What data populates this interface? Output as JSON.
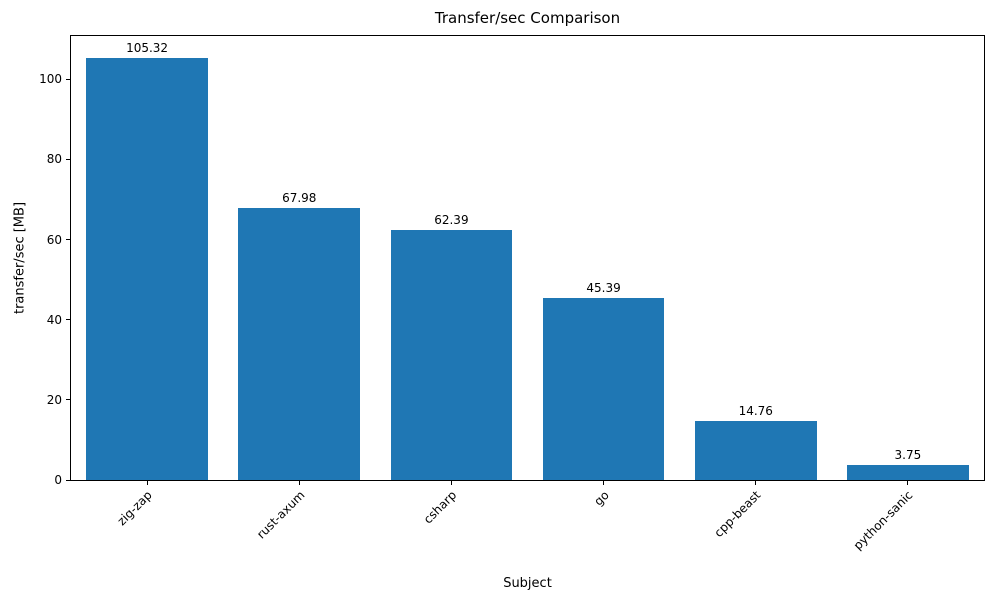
{
  "chart_data": {
    "type": "bar",
    "title": "Transfer/sec Comparison",
    "xlabel": "Subject",
    "ylabel": "transfer/sec [MB]",
    "categories": [
      "zig-zap",
      "rust-axum",
      "csharp",
      "go",
      "cpp-beast",
      "python-sanic"
    ],
    "values": [
      105.32,
      67.98,
      62.39,
      45.39,
      14.76,
      3.75
    ],
    "value_labels": [
      "105.32",
      "67.98",
      "62.39",
      "45.39",
      "14.76",
      "3.75"
    ],
    "yticks": [
      0,
      20,
      40,
      60,
      80,
      100
    ],
    "ylim": [
      0,
      110.8
    ],
    "bar_color": "#1f77b4",
    "grid": false,
    "legend_position": "none",
    "bar_width_fraction": 0.8
  }
}
